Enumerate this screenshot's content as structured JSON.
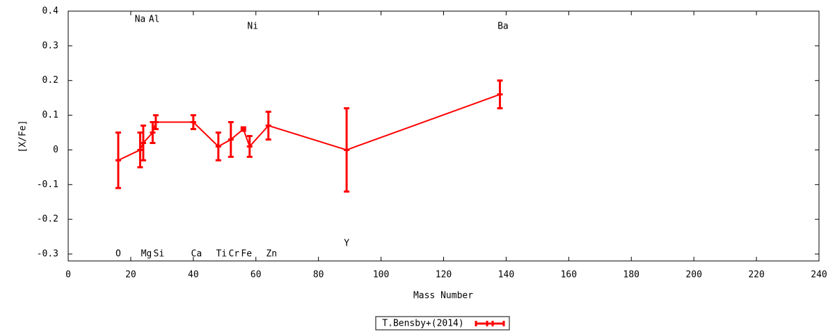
{
  "chart_data": {
    "type": "errorline",
    "xlabel": "Mass Number",
    "ylabel": "[X/Fe]",
    "xlim": [
      0,
      240
    ],
    "xticks": [
      0,
      20,
      40,
      60,
      80,
      100,
      120,
      140,
      160,
      180,
      200,
      220,
      240
    ],
    "ylim": [
      -0.32,
      0.4
    ],
    "yticks": [
      -0.3,
      -0.2,
      -0.1,
      0,
      0.1,
      0.2,
      0.3,
      0.4
    ],
    "legend": "bottom",
    "series": [
      {
        "name": "T.Bensby+(2014)",
        "color": "#ff0000",
        "x": [
          16,
          23,
          24,
          27,
          28,
          40,
          48,
          52,
          56,
          58,
          64,
          89,
          138
        ],
        "values": [
          -0.03,
          0.0,
          0.02,
          0.05,
          0.08,
          0.08,
          0.01,
          0.03,
          0.06,
          0.01,
          0.07,
          0.0,
          0.16
        ],
        "errors": [
          0.08,
          0.05,
          0.05,
          0.03,
          0.02,
          0.02,
          0.04,
          0.05,
          0.005,
          0.03,
          0.04,
          0.12,
          0.04
        ]
      }
    ],
    "annotations": [
      {
        "text": "O",
        "x": 16,
        "y": -0.3
      },
      {
        "text": "Na",
        "x": 23,
        "y": 0.376
      },
      {
        "text": "Mg",
        "x": 25,
        "y": -0.3
      },
      {
        "text": "Al",
        "x": 27.5,
        "y": 0.376
      },
      {
        "text": "Si",
        "x": 29,
        "y": -0.3
      },
      {
        "text": "Ca",
        "x": 41,
        "y": -0.3
      },
      {
        "text": "Ti",
        "x": 49,
        "y": -0.3
      },
      {
        "text": "Cr",
        "x": 53,
        "y": -0.3
      },
      {
        "text": "Fe",
        "x": 57,
        "y": -0.3
      },
      {
        "text": "Ni",
        "x": 59,
        "y": 0.356
      },
      {
        "text": "Zn",
        "x": 65,
        "y": -0.3
      },
      {
        "text": "Y",
        "x": 89,
        "y": -0.27
      },
      {
        "text": "Ba",
        "x": 139,
        "y": 0.356
      }
    ]
  }
}
